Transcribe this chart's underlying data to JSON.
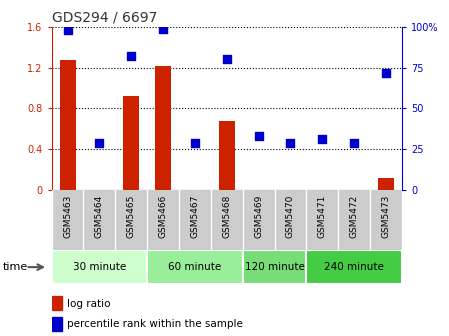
{
  "title": "GDS294 / 6697",
  "samples": [
    "GSM5463",
    "GSM5464",
    "GSM5465",
    "GSM5466",
    "GSM5467",
    "GSM5468",
    "GSM5469",
    "GSM5470",
    "GSM5471",
    "GSM5472",
    "GSM5473"
  ],
  "log_ratio": [
    1.27,
    -0.02,
    0.92,
    1.22,
    -0.01,
    0.68,
    -0.01,
    -0.02,
    -0.02,
    -0.02,
    0.12
  ],
  "percentile": [
    98,
    29,
    82,
    99,
    29,
    80,
    33,
    29,
    31,
    29,
    72
  ],
  "bar_color": "#cc2200",
  "dot_color": "#0000cc",
  "ylim_left": [
    0,
    1.6
  ],
  "ylim_right": [
    0,
    100
  ],
  "yticks_left": [
    0,
    0.4,
    0.8,
    1.2,
    1.6
  ],
  "yticks_right": [
    0,
    25,
    50,
    75,
    100
  ],
  "ytick_labels_left": [
    "0",
    "0.4",
    "0.8",
    "1.2",
    "1.6"
  ],
  "ytick_labels_right": [
    "0",
    "25",
    "50",
    "75",
    "100%"
  ],
  "groups": [
    {
      "label": "30 minute",
      "start": 0,
      "end": 3,
      "color": "#ccffcc"
    },
    {
      "label": "60 minute",
      "start": 3,
      "end": 6,
      "color": "#99ee99"
    },
    {
      "label": "120 minute",
      "start": 6,
      "end": 8,
      "color": "#77dd77"
    },
    {
      "label": "240 minute",
      "start": 8,
      "end": 11,
      "color": "#44cc44"
    }
  ],
  "time_label": "time",
  "legend_log_ratio": "log ratio",
  "legend_percentile": "percentile rank within the sample",
  "title_fontsize": 10,
  "tick_fontsize": 7,
  "legend_fontsize": 7.5,
  "group_fontsize": 7.5,
  "sample_fontsize": 6.5,
  "bar_width": 0.5,
  "dot_size": 35,
  "grid_color": "#000000",
  "background_color": "#ffffff",
  "sample_box_color": "#cccccc",
  "sample_box_border": "#ffffff"
}
